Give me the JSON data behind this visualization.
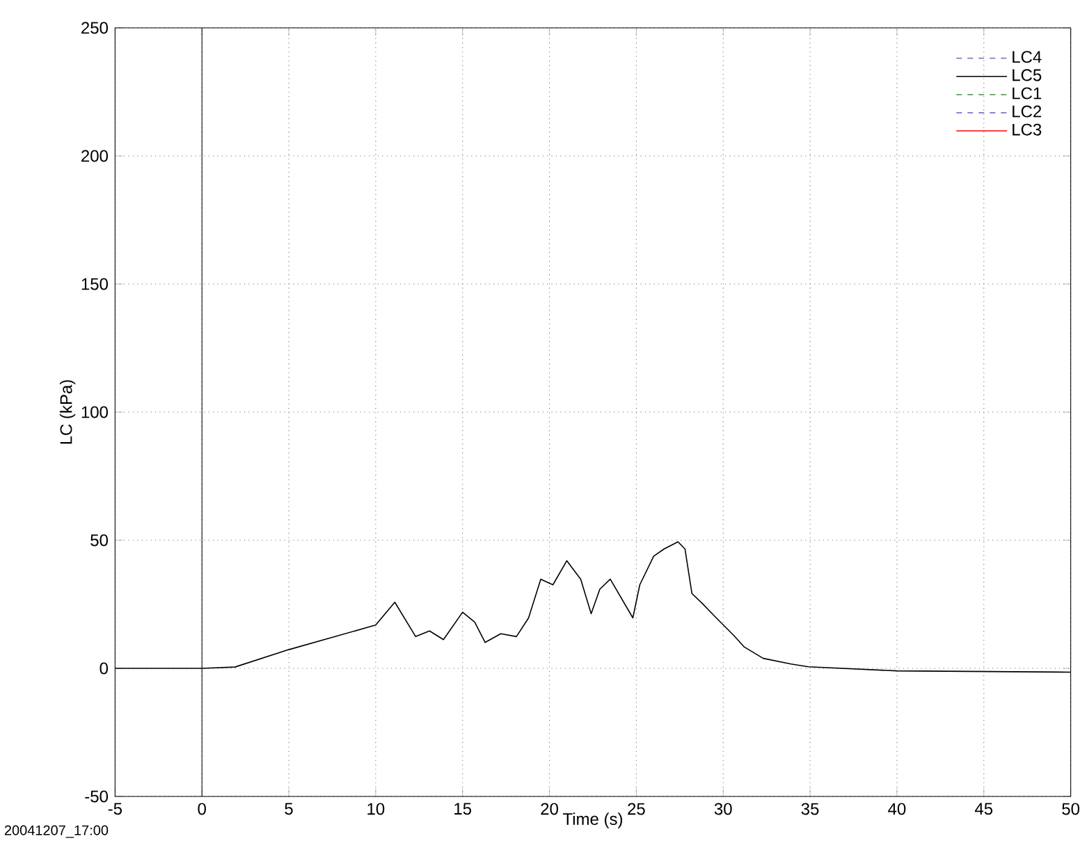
{
  "chart_data": {
    "type": "line",
    "xlabel": "Time (s)",
    "ylabel": "LC (kPa)",
    "annotations": [
      "20041207_17:00"
    ],
    "xlim": [
      -5,
      50
    ],
    "ylim": [
      -50,
      250
    ],
    "xticks": [
      -5,
      0,
      5,
      10,
      15,
      20,
      25,
      30,
      35,
      40,
      45,
      50
    ],
    "yticks": [
      -50,
      0,
      50,
      100,
      150,
      200,
      250
    ],
    "grid": true,
    "legend": "top right",
    "marker": "none",
    "ref_lines": [
      {
        "axis": "x",
        "value": 0,
        "color": "#000000"
      }
    ],
    "series": [
      {
        "name": "LC4",
        "color": "#8080c0",
        "line_style": "dashed"
      },
      {
        "name": "LC5",
        "color": "#000000",
        "line_style": "solid",
        "x": [
          -5,
          0,
          1.9,
          5,
          10,
          11.1,
          12.3,
          13.1,
          13.9,
          15.0,
          15.7,
          16.3,
          17.2,
          18.1,
          18.8,
          19.5,
          20.2,
          21.0,
          21.8,
          22.4,
          22.9,
          23.5,
          24.8,
          25.2,
          26.0,
          26.6,
          27.4,
          27.8,
          28.2,
          28.8,
          29.6,
          30.6,
          31.2,
          32.3,
          33.9,
          34.9,
          40,
          50
        ],
        "values": [
          0,
          0,
          0.5,
          7.3,
          16.9,
          25.8,
          12.4,
          14.6,
          11.2,
          21.9,
          18,
          10.1,
          13.5,
          12.4,
          19.7,
          34.8,
          32.6,
          42,
          34.8,
          21.3,
          30.9,
          34.8,
          19.7,
          32.6,
          43.8,
          46.6,
          49.4,
          46.6,
          29.2,
          25.3,
          19.7,
          12.9,
          8.4,
          3.9,
          1.7,
          0.6,
          -1,
          -1.5
        ]
      },
      {
        "name": "LC1",
        "color": "#60a060",
        "line_style": "dashed"
      },
      {
        "name": "LC2",
        "color": "#6060c0",
        "line_style": "dashed"
      },
      {
        "name": "LC3",
        "color": "#ff0000",
        "line_style": "solid"
      }
    ]
  }
}
